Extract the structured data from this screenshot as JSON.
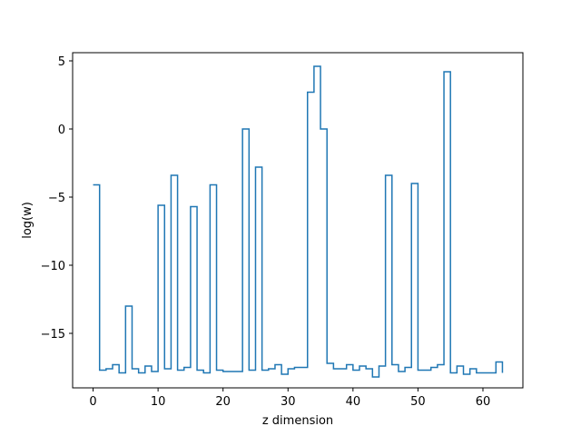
{
  "chart_data": {
    "type": "line",
    "drawstyle": "steps-post",
    "xlabel": "z dimension",
    "ylabel": "log(w)",
    "xlim": [
      -3.15,
      66.15
    ],
    "ylim": [
      -19.0,
      5.6
    ],
    "x_ticks": [
      0,
      10,
      20,
      30,
      40,
      50,
      60
    ],
    "y_ticks": [
      5,
      0,
      -5,
      -10,
      -15
    ],
    "y_tick_labels": [
      "5",
      "0",
      "−5",
      "−10",
      "−15"
    ],
    "grid": false,
    "legend": "none",
    "line_color": "#1f77b4",
    "x": [
      0,
      1,
      2,
      3,
      4,
      5,
      6,
      7,
      8,
      9,
      10,
      11,
      12,
      13,
      14,
      15,
      16,
      17,
      18,
      19,
      20,
      21,
      22,
      23,
      24,
      25,
      26,
      27,
      28,
      29,
      30,
      31,
      32,
      33,
      34,
      35,
      36,
      37,
      38,
      39,
      40,
      41,
      42,
      43,
      44,
      45,
      46,
      47,
      48,
      49,
      50,
      51,
      52,
      53,
      54,
      55,
      56,
      57,
      58,
      59,
      60,
      61,
      62,
      63
    ],
    "y": [
      -4.1,
      -17.7,
      -17.6,
      -17.3,
      -17.9,
      -13.0,
      -17.6,
      -17.9,
      -17.4,
      -17.8,
      -5.6,
      -17.6,
      -3.4,
      -17.7,
      -17.5,
      -5.7,
      -17.7,
      -17.9,
      -4.1,
      -17.7,
      -17.8,
      -17.8,
      -17.8,
      0.0,
      -17.7,
      -2.8,
      -17.7,
      -17.6,
      -17.3,
      -18.0,
      -17.6,
      -17.5,
      -17.5,
      2.7,
      4.6,
      0.0,
      -17.2,
      -17.6,
      -17.6,
      -17.3,
      -17.7,
      -17.4,
      -17.6,
      -18.2,
      -17.4,
      -3.4,
      -17.3,
      -17.8,
      -17.5,
      -4.0,
      -17.7,
      -17.7,
      -17.5,
      -17.3,
      4.2,
      -17.9,
      -17.4,
      -18.0,
      -17.6,
      -17.9,
      -17.9,
      -17.9,
      -17.1,
      -17.9
    ]
  }
}
